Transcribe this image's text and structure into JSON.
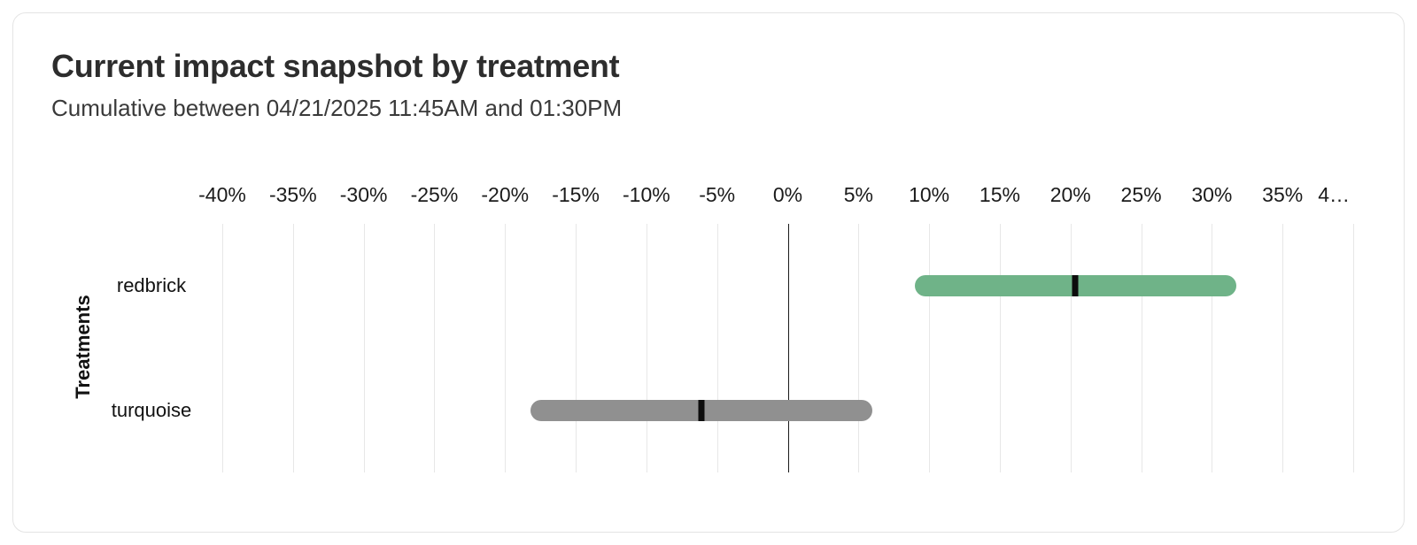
{
  "card": {
    "title": "Current impact snapshot by treatment",
    "subtitle": "Cumulative between 04/21/2025 11:45AM and 01:30PM",
    "border_color": "#e4e4e4",
    "background": "#ffffff"
  },
  "chart_data": {
    "type": "bar",
    "subtype": "horizontal-range-with-estimate-marker",
    "title": "Current impact snapshot by treatment",
    "subtitle": "Cumulative between 04/21/2025 11:45AM and 01:30PM",
    "ylabel": "Treatments",
    "xlabel": "",
    "orientation": "horizontal",
    "legend": "none",
    "categories": [
      "redbrick",
      "turquoise"
    ],
    "series": [
      {
        "name": "redbrick",
        "low": 9.0,
        "high": 31.7,
        "estimate": 20.3,
        "color": "#6fb388"
      },
      {
        "name": "turquoise",
        "low": -18.2,
        "high": 6.0,
        "estimate": -6.1,
        "color": "#909090"
      }
    ],
    "xaxis": {
      "min": -40,
      "max": 40,
      "step": 5,
      "unit": "%",
      "position": "top",
      "grid": true,
      "grid_color": "#e7e7e7",
      "zero_line_color": "#1a1a1a",
      "tick_labels": [
        "-40%",
        "-35%",
        "-30%",
        "-25%",
        "-20%",
        "-15%",
        "-10%",
        "-5%",
        "0%",
        "5%",
        "10%",
        "15%",
        "20%",
        "25%",
        "30%",
        "35%",
        "4…"
      ]
    },
    "estimate_marker_color": "#0d0d0d"
  }
}
